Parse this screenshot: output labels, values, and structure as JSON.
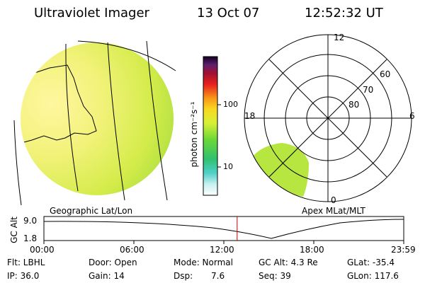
{
  "header": {
    "title": "Ultraviolet Imager",
    "date": "13 Oct 07",
    "time": "12:52:32 UT"
  },
  "colorbar": {
    "unit_label": "photon cm⁻²s⁻¹",
    "ticks": [
      "100",
      "10"
    ]
  },
  "geo_panel": {
    "label": "Geographic Lat/Lon"
  },
  "polar_panel": {
    "label": "Apex MLat/MLT",
    "mlt_labels": {
      "top": "12",
      "left": "18",
      "right": "6",
      "bottom": "0"
    },
    "lat_labels": [
      "60",
      "70",
      "80"
    ]
  },
  "timeline": {
    "ylabel": "GC Alt",
    "y_ticks": [
      "9.0",
      "1.8"
    ],
    "x_ticks": [
      "00:00",
      "06:00",
      "12:00",
      "18:00",
      "23:59"
    ],
    "current_time_fraction": 0.537
  },
  "info": {
    "filter": "Flt: LBHL",
    "ip": "IP: 36.0",
    "door": "Door: Open",
    "gain": "Gain: 14",
    "mode": "Mode: Normal",
    "dsp_label": "Dsp:",
    "dsp_value": "7.6",
    "gc_alt": "GC Alt: 4.3 Re",
    "seq": "Seq: 39",
    "glat": "GLat: -35.4",
    "glon": "GLon: 117.6"
  }
}
